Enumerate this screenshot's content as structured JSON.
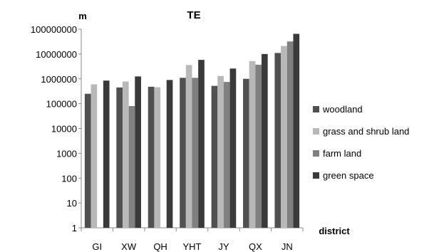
{
  "chart_data": {
    "type": "bar",
    "title": "TE",
    "ylabel": "m",
    "xlabel": "district",
    "y_scale": "log",
    "ylim": [
      1,
      100000000
    ],
    "y_ticks": [
      "1",
      "10",
      "100",
      "1000",
      "10000",
      "100000",
      "1000000",
      "10000000",
      "100000000"
    ],
    "grid": false,
    "legend_position": "right",
    "categories": [
      "GI",
      "XW",
      "QH",
      "YHT",
      "JY",
      "QX",
      "JN"
    ],
    "series": [
      {
        "name": "woodland",
        "color": "#505050",
        "values": [
          250000,
          450000,
          480000,
          1100000,
          520000,
          1000000,
          11000000
        ]
      },
      {
        "name": "grass and shrub land",
        "color": "#b8b8b8",
        "values": [
          600000,
          780000,
          460000,
          3600000,
          1300000,
          5200000,
          21000000
        ]
      },
      {
        "name": "farm land",
        "color": "#808080",
        "values": [
          null,
          80000,
          null,
          1100000,
          750000,
          3700000,
          32000000
        ]
      },
      {
        "name": "green space",
        "color": "#3a3a3a",
        "values": [
          850000,
          1250000,
          900000,
          5800000,
          2600000,
          10000000,
          65000000
        ]
      }
    ]
  }
}
